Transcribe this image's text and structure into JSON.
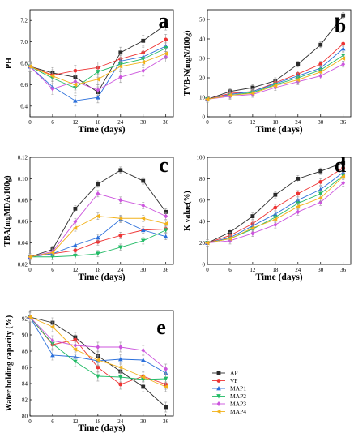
{
  "colors": {
    "AP": "#2b2b2b",
    "VP": "#ee3333",
    "MAP1": "#2a6fdb",
    "MAP2": "#22bb66",
    "MAP3": "#cc55dd",
    "MAP4": "#f2b21b"
  },
  "markers": {
    "AP": "square",
    "VP": "circle",
    "MAP1": "triangle-up",
    "MAP2": "triangle-down",
    "MAP3": "diamond",
    "MAP4": "triangle-left"
  },
  "legend": {
    "position": "right",
    "entries": [
      "AP",
      "VP",
      "MAP1",
      "MAP2",
      "MAP3",
      "MAP4"
    ]
  },
  "chart_data": [
    {
      "panel": "a",
      "type": "line",
      "xlabel": "Time (days)",
      "ylabel": "PH",
      "x": [
        0,
        6,
        12,
        18,
        24,
        30,
        36
      ],
      "xlim": [
        0,
        38
      ],
      "ylim": [
        6.3,
        7.3
      ],
      "xticks": [
        0,
        6,
        12,
        18,
        24,
        30,
        36
      ],
      "yticks": [
        6.4,
        6.6,
        6.8,
        7.0,
        7.2
      ],
      "ytick_labels": [
        "6.4",
        "6.6",
        "6.8",
        "7.0",
        "7.2"
      ],
      "error_bar": 0.05,
      "series": [
        {
          "name": "AP",
          "values": [
            6.77,
            6.71,
            6.67,
            6.53,
            6.9,
            7.01,
            7.16
          ]
        },
        {
          "name": "VP",
          "values": [
            6.77,
            6.69,
            6.73,
            6.76,
            6.84,
            6.9,
            7.02
          ]
        },
        {
          "name": "MAP1",
          "values": [
            6.77,
            6.58,
            6.45,
            6.48,
            6.82,
            6.86,
            6.96
          ]
        },
        {
          "name": "MAP2",
          "values": [
            6.77,
            6.66,
            6.57,
            6.72,
            6.79,
            6.84,
            6.94
          ]
        },
        {
          "name": "MAP3",
          "values": [
            6.77,
            6.56,
            6.63,
            6.55,
            6.67,
            6.73,
            6.86
          ]
        },
        {
          "name": "MAP4",
          "values": [
            6.77,
            6.68,
            6.6,
            6.65,
            6.77,
            6.81,
            6.89
          ]
        }
      ]
    },
    {
      "panel": "b",
      "type": "line",
      "xlabel": "Time (days)",
      "ylabel": "TVB-N(mgN/100g)",
      "x": [
        0,
        6,
        12,
        18,
        24,
        30,
        36
      ],
      "xlim": [
        0,
        38
      ],
      "ylim": [
        0,
        55
      ],
      "xticks": [
        0,
        6,
        12,
        18,
        24,
        30,
        36
      ],
      "yticks": [
        0,
        10,
        20,
        30,
        40,
        50
      ],
      "ytick_labels": [
        "0",
        "10",
        "20",
        "30",
        "40",
        "50"
      ],
      "error_bar": 1.5,
      "series": [
        {
          "name": "AP",
          "values": [
            9,
            13,
            15,
            18.5,
            27,
            37,
            52
          ]
        },
        {
          "name": "VP",
          "values": [
            9,
            12,
            13,
            17.5,
            22,
            27,
            37.5
          ]
        },
        {
          "name": "MAP1",
          "values": [
            9,
            11.5,
            13,
            17,
            21,
            25,
            35
          ]
        },
        {
          "name": "MAP2",
          "values": [
            9,
            11,
            12.5,
            16.5,
            20,
            24,
            31.5
          ]
        },
        {
          "name": "MAP3",
          "values": [
            9,
            10.5,
            11.5,
            15,
            18,
            21,
            27
          ]
        },
        {
          "name": "MAP4",
          "values": [
            9,
            11,
            12,
            16,
            19,
            23,
            30
          ]
        }
      ]
    },
    {
      "panel": "c",
      "type": "line",
      "xlabel": "Time (days)",
      "ylabel": "TBA(mgMDA/100g)",
      "x": [
        0,
        6,
        12,
        18,
        24,
        30,
        36
      ],
      "xlim": [
        0,
        38
      ],
      "ylim": [
        0.02,
        0.12
      ],
      "xticks": [
        0,
        6,
        12,
        18,
        24,
        30,
        36
      ],
      "yticks": [
        0.02,
        0.04,
        0.06,
        0.08,
        0.1,
        0.12
      ],
      "ytick_labels": [
        "0.02",
        "0.04",
        "0.06",
        "0.08",
        "0.10",
        "0.12"
      ],
      "error_bar": 0.003,
      "series": [
        {
          "name": "AP",
          "values": [
            0.027,
            0.034,
            0.072,
            0.095,
            0.108,
            0.098,
            0.069
          ]
        },
        {
          "name": "VP",
          "values": [
            0.027,
            0.03,
            0.033,
            0.041,
            0.047,
            0.052,
            0.053
          ]
        },
        {
          "name": "MAP1",
          "values": [
            0.027,
            0.03,
            0.038,
            0.045,
            0.062,
            0.052,
            0.046
          ]
        },
        {
          "name": "MAP2",
          "values": [
            0.027,
            0.027,
            0.028,
            0.03,
            0.036,
            0.042,
            0.052
          ]
        },
        {
          "name": "MAP3",
          "values": [
            0.027,
            0.032,
            0.06,
            0.086,
            0.08,
            0.075,
            0.065
          ]
        },
        {
          "name": "MAP4",
          "values": [
            0.027,
            0.031,
            0.054,
            0.065,
            0.063,
            0.063,
            0.058
          ]
        }
      ]
    },
    {
      "panel": "d",
      "type": "line",
      "xlabel": "Time (days)",
      "ylabel": "K value(%)",
      "x": [
        0,
        6,
        12,
        18,
        24,
        30,
        36
      ],
      "xlim": [
        0,
        38
      ],
      "ylim": [
        0,
        100
      ],
      "xticks": [
        0,
        6,
        12,
        18,
        24,
        30,
        36
      ],
      "yticks": [
        0,
        20,
        40,
        60,
        80,
        100
      ],
      "ytick_labels": [
        "0",
        "20",
        "40",
        "60",
        "80",
        "100"
      ],
      "error_bar": 3,
      "series": [
        {
          "name": "AP",
          "values": [
            20,
            30,
            45,
            65,
            80,
            87,
            95
          ]
        },
        {
          "name": "VP",
          "values": [
            20,
            27,
            38,
            53,
            66,
            77,
            90
          ]
        },
        {
          "name": "MAP1",
          "values": [
            20,
            25,
            36,
            47,
            60,
            70,
            86
          ]
        },
        {
          "name": "MAP2",
          "values": [
            20,
            24,
            33,
            44,
            57,
            66,
            83
          ]
        },
        {
          "name": "MAP3",
          "values": [
            20,
            22,
            29,
            37,
            49,
            58,
            76
          ]
        },
        {
          "name": "MAP4",
          "values": [
            20,
            24,
            34,
            42,
            54,
            62,
            82
          ]
        }
      ]
    },
    {
      "panel": "e",
      "type": "line",
      "xlabel": "Time (days)",
      "ylabel": "Water holding capacity (%)",
      "x": [
        0,
        6,
        12,
        18,
        24,
        30,
        36
      ],
      "xlim": [
        0,
        38
      ],
      "ylim": [
        80,
        93
      ],
      "xticks": [
        0,
        6,
        12,
        18,
        24,
        30,
        36
      ],
      "yticks": [
        80,
        82,
        84,
        86,
        88,
        90,
        92
      ],
      "ytick_labels": [
        "80",
        "82",
        "84",
        "86",
        "88",
        "90",
        "92"
      ],
      "error_bar": 0.6,
      "series": [
        {
          "name": "AP",
          "values": [
            92.2,
            91.5,
            89.7,
            87.4,
            85.5,
            83.6,
            81.1
          ]
        },
        {
          "name": "VP",
          "values": [
            92.2,
            88.8,
            89.4,
            86.0,
            83.9,
            84.9,
            83.9
          ]
        },
        {
          "name": "MAP1",
          "values": [
            92.2,
            87.5,
            87.3,
            86.8,
            87.0,
            86.9,
            85.3
          ]
        },
        {
          "name": "MAP2",
          "values": [
            92.2,
            88.9,
            86.7,
            84.9,
            84.8,
            84.5,
            84.6
          ]
        },
        {
          "name": "MAP3",
          "values": [
            92.2,
            89.3,
            88.7,
            88.5,
            88.5,
            88.1,
            85.8
          ]
        },
        {
          "name": "MAP4",
          "values": [
            92.2,
            91.0,
            88.2,
            86.9,
            86.0,
            84.8,
            83.6
          ]
        }
      ]
    }
  ]
}
